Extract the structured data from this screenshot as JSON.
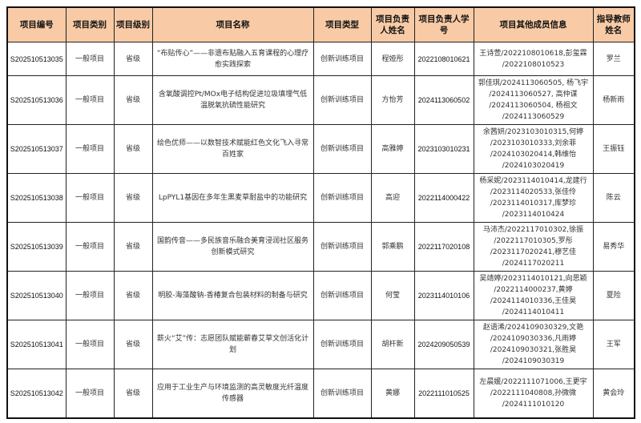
{
  "header": {
    "accent_color": "#f8cba6",
    "columns": [
      "项目编号",
      "项目类别",
      "项目级别",
      "项目名称",
      "项目类型",
      "项目负责人姓名",
      "项目负责人学号",
      "项目其他成员信息",
      "指导教师姓名"
    ]
  },
  "rows": [
    {
      "code": "S202510513035",
      "category": "一般项目",
      "level": "省级",
      "name": "“布贴传心”——非遗布贴融入五育课程的心理疗愈实践探索",
      "type": "创新训练项目",
      "leader": "程娅彤",
      "leader_id": "2022108010621",
      "members": [
        "王诗萱/2022108010618,彭玺霖",
        "/2022108010523"
      ],
      "advisor": "罗兰"
    },
    {
      "code": "S202510513036",
      "category": "一般项目",
      "level": "省级",
      "name": "含氧酸调控Pt/MOx电子结构促进垃圾填埋气低温脱氧抗硫性能研究",
      "type": "创新训练项目",
      "leader": "方怡芳",
      "leader_id": "2024113060502",
      "members": [
        "郭佳琪/2024113060505, 杨飞宇",
        "/2024113060527, 高仲谋",
        "/2024113060504, 杨祖文",
        "/2024113060529"
      ],
      "advisor": "杨新雨"
    },
    {
      "code": "S202510513037",
      "category": "一般项目",
      "level": "省级",
      "name": "绘色优师——以数智技术赋能红色文化飞入寻常百姓家",
      "type": "创新训练项目",
      "leader": "高雅婷",
      "leader_id": "2023103010231",
      "members": [
        "余茜妍/2023103010315,何婷",
        "/2023103010333,刘余菲",
        "/2024103020414,韩维怡",
        "/2024103020419"
      ],
      "advisor": "王振钰"
    },
    {
      "code": "S202510513038",
      "category": "一般项目",
      "level": "省级",
      "name": "LpPYL1基因在多年生黑麦草耐盐中的功能研究",
      "type": "创新训练项目",
      "leader": "高迎",
      "leader_id": "2022114000422",
      "members": [
        "杨采妮/2023114010414,龙建行",
        "/2023114020533,张佳伶",
        "/2023114010317,库梦珍",
        "/2023114010424"
      ],
      "advisor": "陈云"
    },
    {
      "code": "S202510513039",
      "category": "一般项目",
      "level": "省级",
      "name": "国韵传音——多民族音乐融合美育浸润社区服务创新模式研究",
      "type": "创新训练项目",
      "leader": "郭乘鹏",
      "leader_id": "2022117020108",
      "members": [
        "马沛杰/2022117010302,徐振",
        "/2022117010305,罗彤",
        "/2023117020241,穆艺佳",
        "/2024117020211"
      ],
      "advisor": "易秀华"
    },
    {
      "code": "S202510513040",
      "category": "一般项目",
      "level": "省级",
      "name": "明胶-海藻酸钠-香椿复合包装材料的制备与研究",
      "type": "创新训练项目",
      "leader": "何莹",
      "leader_id": "2023114010106",
      "members": [
        "吴靖婷/2023114010121,向思颖",
        "/2022114000237,黄婷",
        "/2024114010336,王佳昊",
        "/2024114010411"
      ],
      "advisor": "夏险"
    },
    {
      "code": "S202510513041",
      "category": "一般项目",
      "level": "省级",
      "name": "薪火“艾”传：志愿团队赋能蕲春艾草文创活化计划",
      "type": "创新训练项目",
      "leader": "胡杆新",
      "leader_id": "2024209050539",
      "members": [
        "赵语浠/2024109030329,文艳",
        "/2024109030336,凡雨婷",
        "/2024109030321,张胜昊",
        "/2024109030319"
      ],
      "advisor": "王军"
    },
    {
      "code": "S202510513042",
      "category": "一般项目",
      "level": "省级",
      "name": "应用于工业生产与环境监测的高灵敏度光纤温度传感器",
      "type": "创新训练项目",
      "leader": "黄娜",
      "leader_id": "2022111010525",
      "members": [
        "左晨媛/2022111071006,王更宇",
        "/2022111040808,孙微微",
        "/2024111010120"
      ],
      "advisor": "黄会玲"
    }
  ]
}
